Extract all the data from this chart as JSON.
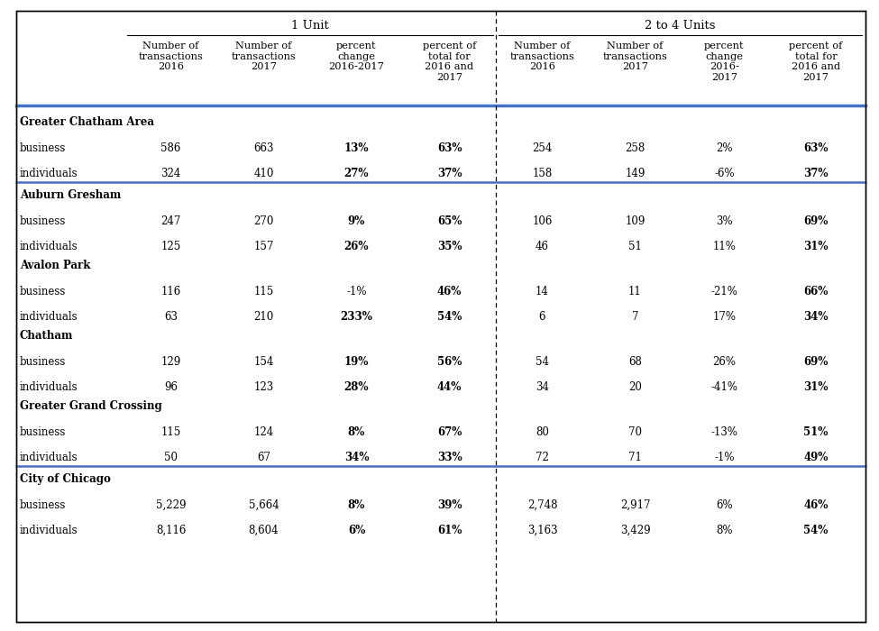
{
  "col_group_1": "1 Unit",
  "col_group_2": "2 to 4 Units",
  "col_headers": [
    "Number of\ntransactions\n2016",
    "Number of\ntransactions\n2017",
    "percent\nchange\n2016-2017",
    "percent of\ntotal for\n2016 and\n2017",
    "Number of\ntransactions\n2016",
    "Number of\ntransactions\n2017",
    "percent\nchange\n2016-\n2017",
    "percent of\ntotal for\n2016 and\n2017"
  ],
  "sections": [
    {
      "name": "Greater Chatham Area",
      "rows": [
        {
          "label": "business",
          "values": [
            "586",
            "663",
            "13%",
            "63%",
            "254",
            "258",
            "2%",
            "63%"
          ],
          "bold": [
            false,
            false,
            true,
            true,
            false,
            false,
            false,
            true
          ]
        },
        {
          "label": "individuals",
          "values": [
            "324",
            "410",
            "27%",
            "37%",
            "158",
            "149",
            "-6%",
            "37%"
          ],
          "bold": [
            false,
            false,
            true,
            true,
            false,
            false,
            false,
            true
          ]
        }
      ],
      "separator_after": false,
      "blue_line_after": true
    },
    {
      "name": "Auburn Gresham",
      "rows": [
        {
          "label": "business",
          "values": [
            "247",
            "270",
            "9%",
            "65%",
            "106",
            "109",
            "3%",
            "69%"
          ],
          "bold": [
            false,
            false,
            true,
            true,
            false,
            false,
            false,
            true
          ]
        },
        {
          "label": "individuals",
          "values": [
            "125",
            "157",
            "26%",
            "35%",
            "46",
            "51",
            "11%",
            "31%"
          ],
          "bold": [
            false,
            false,
            true,
            true,
            false,
            false,
            false,
            true
          ]
        }
      ],
      "separator_after": false,
      "blue_line_after": false
    },
    {
      "name": "Avalon Park",
      "rows": [
        {
          "label": "business",
          "values": [
            "116",
            "115",
            "-1%",
            "46%",
            "14",
            "11",
            "-21%",
            "66%"
          ],
          "bold": [
            false,
            false,
            false,
            true,
            false,
            false,
            false,
            true
          ]
        },
        {
          "label": "individuals",
          "values": [
            "63",
            "210",
            "233%",
            "54%",
            "6",
            "7",
            "17%",
            "34%"
          ],
          "bold": [
            false,
            false,
            true,
            true,
            false,
            false,
            false,
            true
          ]
        }
      ],
      "separator_after": false,
      "blue_line_after": false
    },
    {
      "name": "Chatham",
      "rows": [
        {
          "label": "business",
          "values": [
            "129",
            "154",
            "19%",
            "56%",
            "54",
            "68",
            "26%",
            "69%"
          ],
          "bold": [
            false,
            false,
            true,
            true,
            false,
            false,
            false,
            true
          ]
        },
        {
          "label": "individuals",
          "values": [
            "96",
            "123",
            "28%",
            "44%",
            "34",
            "20",
            "-41%",
            "31%"
          ],
          "bold": [
            false,
            false,
            true,
            true,
            false,
            false,
            false,
            true
          ]
        }
      ],
      "separator_after": false,
      "blue_line_after": false
    },
    {
      "name": "Greater Grand Crossing",
      "rows": [
        {
          "label": "business",
          "values": [
            "115",
            "124",
            "8%",
            "67%",
            "80",
            "70",
            "-13%",
            "51%"
          ],
          "bold": [
            false,
            false,
            true,
            true,
            false,
            false,
            false,
            true
          ]
        },
        {
          "label": "individuals",
          "values": [
            "50",
            "67",
            "34%",
            "33%",
            "72",
            "71",
            "-1%",
            "49%"
          ],
          "bold": [
            false,
            false,
            true,
            true,
            false,
            false,
            false,
            true
          ]
        }
      ],
      "separator_after": false,
      "blue_line_after": true
    },
    {
      "name": "City of Chicago",
      "rows": [
        {
          "label": "business",
          "values": [
            "5,229",
            "5,664",
            "8%",
            "39%",
            "2,748",
            "2,917",
            "6%",
            "46%"
          ],
          "bold": [
            false,
            false,
            true,
            true,
            false,
            false,
            false,
            true
          ]
        },
        {
          "label": "individuals",
          "values": [
            "8,116",
            "8,604",
            "6%",
            "61%",
            "3,163",
            "3,429",
            "8%",
            "54%"
          ],
          "bold": [
            false,
            false,
            true,
            true,
            false,
            false,
            false,
            true
          ]
        }
      ],
      "separator_after": false,
      "blue_line_after": false
    }
  ],
  "background_color": "#ffffff",
  "header_line_color": "#4472c4",
  "blue_line_color": "#4472c4",
  "border_color": "#000000",
  "font_size": 8.5,
  "header_font_size": 8.2,
  "group_label_fontsize": 9.5,
  "section_name_fontsize": 8.5,
  "data_label_fontsize": 8.5
}
